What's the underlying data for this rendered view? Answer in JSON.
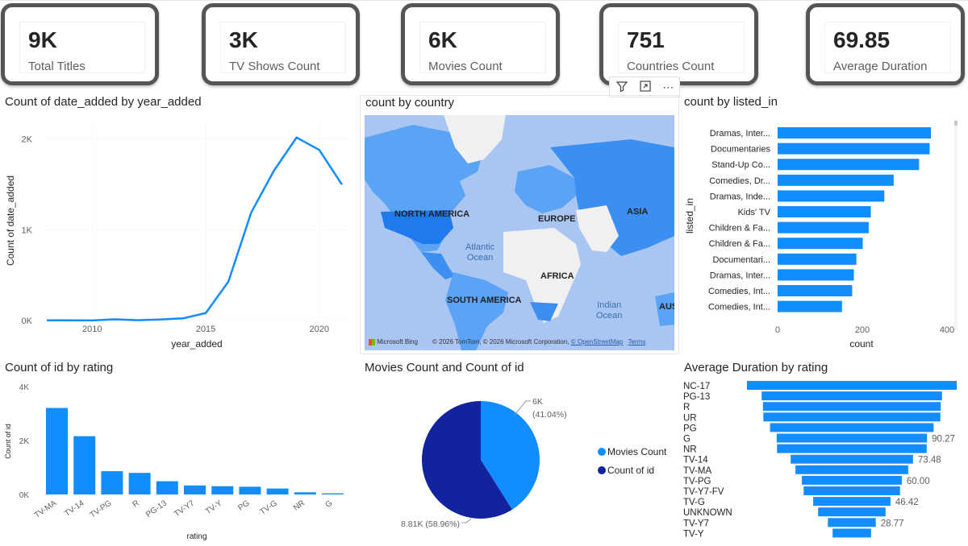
{
  "kpis": [
    {
      "value": "9K",
      "label": "Total Titles"
    },
    {
      "value": "3K",
      "label": "TV Shows Count"
    },
    {
      "value": "6K",
      "label": "Movies Count"
    },
    {
      "value": "751",
      "label": "Countries Count"
    },
    {
      "value": "69.85",
      "label": "Average Duration"
    }
  ],
  "toolbar": {
    "icons": [
      "filter-icon",
      "focus-mode-icon",
      "more-options-icon"
    ],
    "more_label": "⋯"
  },
  "line_chart": {
    "title": "Count of date_added by year_added",
    "chart_data": {
      "type": "line",
      "x": [
        2008,
        2009,
        2010,
        2011,
        2012,
        2013,
        2014,
        2015,
        2016,
        2017,
        2018,
        2019,
        2020,
        2021
      ],
      "y": [
        2,
        2,
        1,
        13,
        3,
        11,
        24,
        82,
        429,
        1188,
        1649,
        2016,
        1879,
        1498
      ],
      "xlabel": "year_added",
      "ylabel": "Count of date_added",
      "xticks": [
        "2010",
        "2015",
        "2020"
      ],
      "yticks": [
        "0K",
        "1K",
        "2K"
      ],
      "ylim": [
        0,
        2200
      ],
      "xlim": [
        2008,
        2021.5
      ],
      "grid": true
    }
  },
  "map": {
    "title": "count by country",
    "continents": [
      "NORTH AMERICA",
      "EUROPE",
      "ASIA",
      "AFRICA",
      "SOUTH AMERICA",
      "AUS"
    ],
    "oceans": [
      "Atlantic\nOcean",
      "Indian\nOcean"
    ],
    "bing": "Microsoft Bing",
    "attribution": "© 2026 TomTom, © 2026 Microsoft Corporation,",
    "osm": "© OpenStreetMap",
    "terms": "Terms",
    "colors": {
      "land_shaded": "#3a8ff0",
      "land_unshaded": "#f0f0f0",
      "water": "#a9c5f2"
    }
  },
  "listed_in_chart": {
    "title": "count by listed_in",
    "chart_data": {
      "type": "bar",
      "orientation": "horizontal",
      "categories": [
        "Dramas, Inter...",
        "Documentaries",
        "Stand-Up Co...",
        "Comedies, Dr...",
        "Dramas, Inde...",
        "Kids' TV",
        "Children & Fa...",
        "Children & Fa...",
        "Documentari...",
        "Dramas, Inter...",
        "Comedies, Int...",
        "Comedies, Int..."
      ],
      "values": [
        362,
        359,
        334,
        274,
        252,
        220,
        215,
        201,
        186,
        180,
        176,
        152
      ],
      "xlabel": "count",
      "ylabel": "listed_in",
      "xticks": [
        "0",
        "200",
        "400"
      ],
      "xlim": [
        0,
        400
      ]
    }
  },
  "rating_chart": {
    "title": "Count of id by rating",
    "chart_data": {
      "type": "bar",
      "categories": [
        "TV-MA",
        "TV-14",
        "TV-PG",
        "R",
        "PG-13",
        "TV-Y7",
        "TV-Y",
        "PG",
        "TV-G",
        "NR",
        "G"
      ],
      "values": [
        3207,
        2160,
        863,
        799,
        490,
        334,
        307,
        287,
        220,
        80,
        41
      ],
      "xlabel": "rating",
      "ylabel": "Count of id",
      "yticks": [
        "0K",
        "2K",
        "4K"
      ],
      "ylim": [
        0,
        4000
      ]
    }
  },
  "pie_chart": {
    "title": "Movies Count and Count of id",
    "chart_data": {
      "type": "pie",
      "categories": [
        "Movies Count",
        "Count of id"
      ],
      "values": [
        6131,
        8807
      ],
      "data_labels": [
        "6K\n(41.04%)",
        "8.81K (58.96%)"
      ],
      "colors": [
        "#118dff",
        "#12239e"
      ]
    },
    "legend": [
      "Movies Count",
      "Count of id"
    ]
  },
  "duration_chart": {
    "title": "Average Duration by rating",
    "chart_data": {
      "type": "bar",
      "orientation": "funnel",
      "categories": [
        "NC-17",
        "PG-13",
        "R",
        "UR",
        "PG",
        "G",
        "NR",
        "TV-14",
        "TV-MA",
        "TV-PG",
        "TV-Y7-FV",
        "TV-G",
        "UNKNOWN",
        "TV-Y7",
        "TV-Y"
      ],
      "values": [
        125.97,
        108.33,
        106.72,
        106.33,
        98.28,
        90.27,
        89.89,
        73.48,
        67.72,
        60.0,
        57.86,
        46.42,
        40.5,
        28.77,
        23.1
      ],
      "data_labels": [
        "",
        "",
        "",
        "",
        "",
        "90.27",
        "",
        "73.48",
        "",
        "60.00",
        "",
        "46.42",
        "",
        "28.77",
        ""
      ]
    }
  },
  "colors": {
    "accent": "#118dff",
    "dark": "#12239e",
    "frame": "#555555"
  }
}
